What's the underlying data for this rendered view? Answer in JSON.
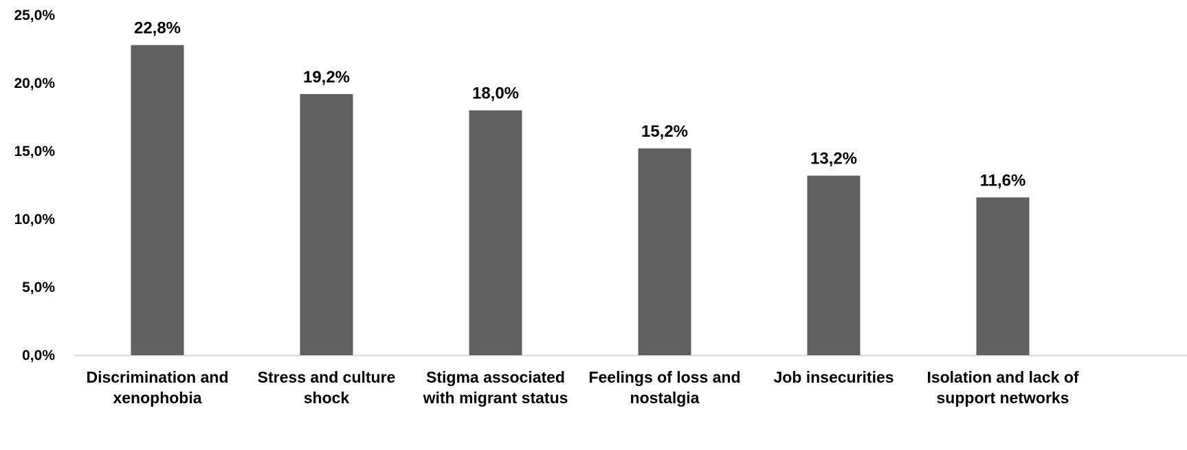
{
  "chart_data": {
    "type": "bar",
    "categories": [
      [
        "Discrimination and",
        "xenophobia"
      ],
      [
        "Stress and culture",
        "shock"
      ],
      [
        "Stigma associated",
        "with migrant status"
      ],
      [
        "Feelings of loss and",
        "nostalgia"
      ],
      [
        "Job insecurities"
      ],
      [
        "Isolation and lack of",
        "support networks"
      ]
    ],
    "values": [
      22.8,
      19.2,
      18.0,
      15.2,
      13.2,
      11.6
    ],
    "value_labels": [
      "22,8%",
      "19,2%",
      "18,0%",
      "15,2%",
      "13,2%",
      "11,6%"
    ],
    "y_ticks": [
      0,
      5,
      10,
      15,
      20,
      25
    ],
    "y_tick_labels": [
      "0,0%",
      "5,0%",
      "10,0%",
      "15,0%",
      "20,0%",
      "25,0%"
    ],
    "ylim": [
      0,
      25
    ],
    "grid": false,
    "bar_color": "#606060",
    "axis_color": "#d9d9d9",
    "title": "",
    "xlabel": "",
    "ylabel": ""
  }
}
